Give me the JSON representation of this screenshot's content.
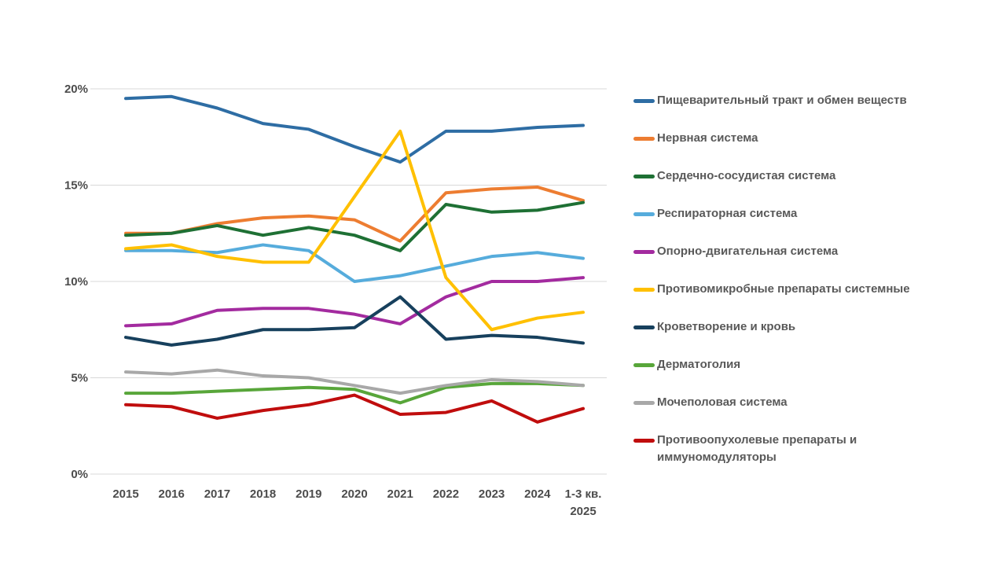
{
  "chart_data": {
    "type": "line",
    "title": "",
    "xlabel": "",
    "ylabel": "",
    "ylim": [
      0,
      20
    ],
    "grid": true,
    "legend_position": "right",
    "y_ticks": [
      "20%",
      "15%",
      "10%",
      "5%",
      "0%"
    ],
    "y_tick_values": [
      20,
      15,
      10,
      5,
      0
    ],
    "x_labels": [
      "2015",
      "2016",
      "2017",
      "2018",
      "2019",
      "2020",
      "2021",
      "2022",
      "2023",
      "2024",
      "1-3 кв. 2025"
    ],
    "x_last_lines": [
      "1-3 кв.",
      "2025"
    ],
    "series": [
      {
        "name": "Пищеварительный тракт и обмен веществ",
        "color": "#2E6DA4",
        "values": [
          19.5,
          19.6,
          19.0,
          18.2,
          17.9,
          17.0,
          16.2,
          17.8,
          17.8,
          18.0,
          18.1
        ]
      },
      {
        "name": "Нервная система",
        "color": "#ED7D31",
        "values": [
          12.5,
          12.5,
          13.0,
          13.3,
          13.4,
          13.2,
          12.1,
          14.6,
          14.8,
          14.9,
          14.2
        ]
      },
      {
        "name": "Сердечно-сосудистая система",
        "color": "#1E7034",
        "values": [
          12.4,
          12.5,
          12.9,
          12.4,
          12.8,
          12.4,
          11.6,
          14.0,
          13.6,
          13.7,
          14.1
        ]
      },
      {
        "name": "Респираторная система",
        "color": "#56ACDC",
        "values": [
          11.6,
          11.6,
          11.5,
          11.9,
          11.6,
          10.0,
          10.3,
          10.8,
          11.3,
          11.5,
          11.2
        ]
      },
      {
        "name": "Опорно-двигательная система",
        "color": "#A32B9F",
        "values": [
          7.7,
          7.8,
          8.5,
          8.6,
          8.6,
          8.3,
          7.8,
          9.2,
          10.0,
          10.0,
          10.2
        ]
      },
      {
        "name": "Противомикробные препараты системные",
        "color": "#FFC000",
        "values": [
          11.7,
          11.9,
          11.3,
          11.0,
          11.0,
          14.4,
          17.8,
          10.2,
          7.5,
          8.1,
          8.4
        ]
      },
      {
        "name": "Кроветворение и кровь",
        "color": "#17405D",
        "values": [
          7.1,
          6.7,
          7.0,
          7.5,
          7.5,
          7.6,
          9.2,
          7.0,
          7.2,
          7.1,
          6.8
        ]
      },
      {
        "name": "Дерматоголия",
        "color": "#58A63A",
        "values": [
          4.2,
          4.2,
          4.3,
          4.4,
          4.5,
          4.4,
          3.7,
          4.5,
          4.7,
          4.7,
          4.6
        ]
      },
      {
        "name": "Мочеполовая система",
        "color": "#A8A8A8",
        "values": [
          5.3,
          5.2,
          5.4,
          5.1,
          5.0,
          4.6,
          4.2,
          4.6,
          4.9,
          4.8,
          4.6
        ]
      },
      {
        "name": "Противоопухолевые препараты и иммуномодуляторы",
        "color": "#C00D0D",
        "values": [
          3.6,
          3.5,
          2.9,
          3.3,
          3.6,
          4.1,
          3.1,
          3.2,
          3.8,
          2.7,
          3.4
        ]
      }
    ]
  },
  "colors": {
    "grid": "#D8D8D8",
    "axis_text": "#4C4C4C",
    "legend_text": "#595959",
    "background": "#FFFFFF"
  }
}
